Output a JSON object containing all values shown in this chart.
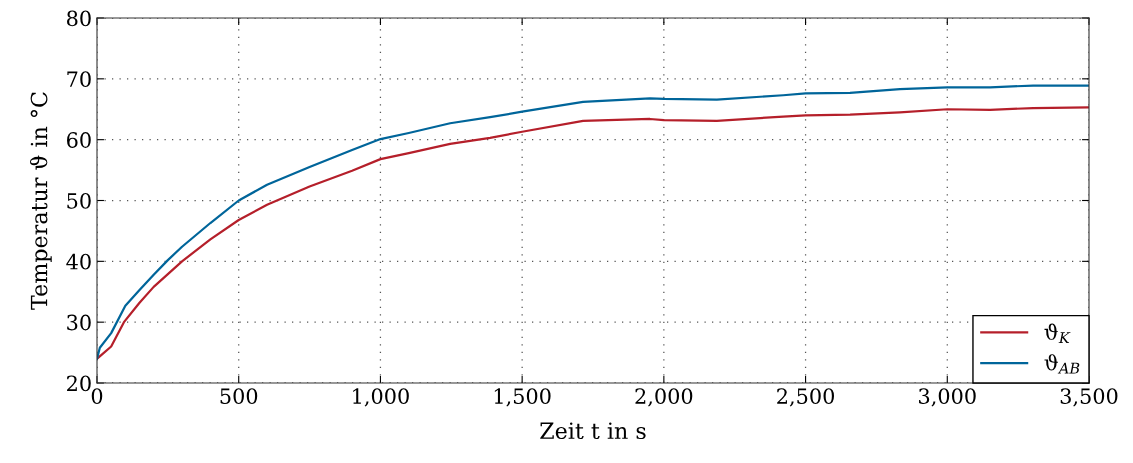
{
  "chart_data": {
    "type": "line",
    "xlabel": "Zeit t in s",
    "ylabel": "Temperatur ϑ in °C",
    "xlim": [
      0,
      3500
    ],
    "ylim": [
      20,
      80
    ],
    "xticks": [
      0,
      500,
      {
        "value": 1000,
        "label": "1,000"
      },
      {
        "value": 1500,
        "label": "1,500"
      },
      {
        "value": 2000,
        "label": "2,000"
      },
      {
        "value": 2500,
        "label": "2,500"
      },
      {
        "value": 3000,
        "label": "3,000"
      },
      {
        "value": 3500,
        "label": "3,500"
      }
    ],
    "yticks": [
      20,
      30,
      40,
      50,
      60,
      70,
      80
    ],
    "grid": true,
    "legend": "bottom right",
    "line_style": "solid",
    "marker": "none",
    "series": [
      {
        "name": "ϑ$_{K}$",
        "color": "#b51f2a",
        "x": [
          0,
          20,
          50,
          95,
          150,
          200,
          300,
          400,
          500,
          600,
          750,
          900,
          1000,
          1100,
          1246,
          1387,
          1500,
          1715,
          1951,
          2000,
          2187,
          2421,
          2500,
          2657,
          2833,
          3000,
          3151,
          3303,
          3500
        ],
        "values": [
          24,
          24.8,
          26,
          30,
          33.2,
          35.8,
          40,
          43.6,
          46.8,
          49.3,
          52.3,
          54.9,
          56.8,
          57.8,
          59.3,
          60.3,
          61.3,
          63.1,
          63.4,
          63.2,
          63.1,
          63.8,
          64.0,
          64.1,
          64.5,
          65.0,
          64.9,
          65.2,
          65.3
        ]
      },
      {
        "name": "ϑ$_{AB}$",
        "color": "#00659a",
        "x": [
          0,
          10,
          50,
          100,
          150,
          200,
          250,
          300,
          400,
          500,
          600,
          750,
          900,
          1000,
          1100,
          1246,
          1387,
          1500,
          1715,
          1951,
          2000,
          2187,
          2421,
          2500,
          2657,
          2833,
          3000,
          3151,
          3303,
          3500
        ],
        "values": [
          24,
          25.8,
          28.2,
          32.7,
          35.3,
          37.8,
          40.2,
          42.4,
          46.3,
          50,
          52.6,
          55.5,
          58.3,
          60.1,
          61.1,
          62.7,
          63.7,
          64.6,
          66.2,
          66.8,
          66.7,
          66.6,
          67.3,
          67.6,
          67.7,
          68.3,
          68.6,
          68.6,
          68.9,
          68.9
        ]
      }
    ]
  }
}
